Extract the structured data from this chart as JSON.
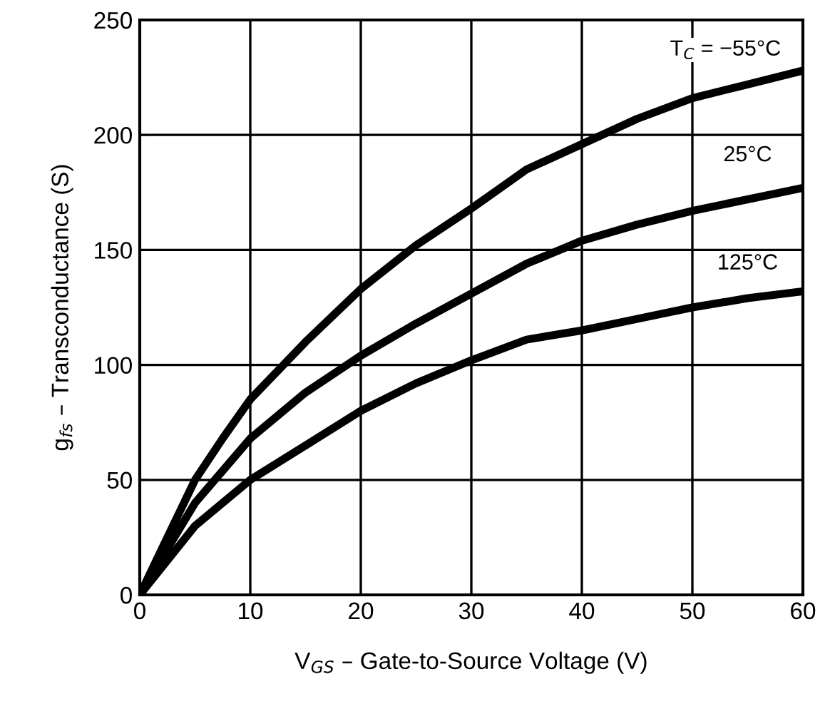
{
  "chart_data": {
    "type": "line",
    "xlabel": "V$_{GS}$ – Gate-to-Source Voltage (V)",
    "ylabel": "g$_{fs}$ – Transconductance (S)",
    "xlim": [
      0,
      60
    ],
    "xticks": [
      0,
      10,
      20,
      30,
      40,
      50,
      60
    ],
    "ylim": [
      0,
      250
    ],
    "yticks": [
      0,
      50,
      100,
      150,
      200,
      250
    ],
    "grid": true,
    "marker": "none",
    "line_style": "solid",
    "series": [
      {
        "name": "T$_{C}$ = −55°C",
        "color": "#000000",
        "x": [
          0,
          2.5,
          5,
          7.5,
          10,
          15,
          20,
          25,
          30,
          35,
          40,
          45,
          50,
          55,
          60
        ],
        "values": [
          0,
          25,
          50,
          68,
          85,
          110,
          133,
          152,
          168,
          185,
          196,
          207,
          216,
          222,
          228
        ]
      },
      {
        "name": "25°C",
        "color": "#000000",
        "x": [
          0,
          5,
          10,
          15,
          20,
          25,
          30,
          35,
          40,
          45,
          50,
          55,
          60
        ],
        "values": [
          0,
          40,
          68,
          88,
          104,
          118,
          131,
          144,
          154,
          161,
          167,
          172,
          177
        ]
      },
      {
        "name": "125°C",
        "color": "#000000",
        "x": [
          0,
          5,
          10,
          15,
          20,
          25,
          30,
          35,
          40,
          45,
          50,
          55,
          60
        ],
        "values": [
          0,
          30,
          50,
          65,
          80,
          92,
          102,
          111,
          115,
          120,
          125,
          129,
          132
        ]
      }
    ]
  }
}
